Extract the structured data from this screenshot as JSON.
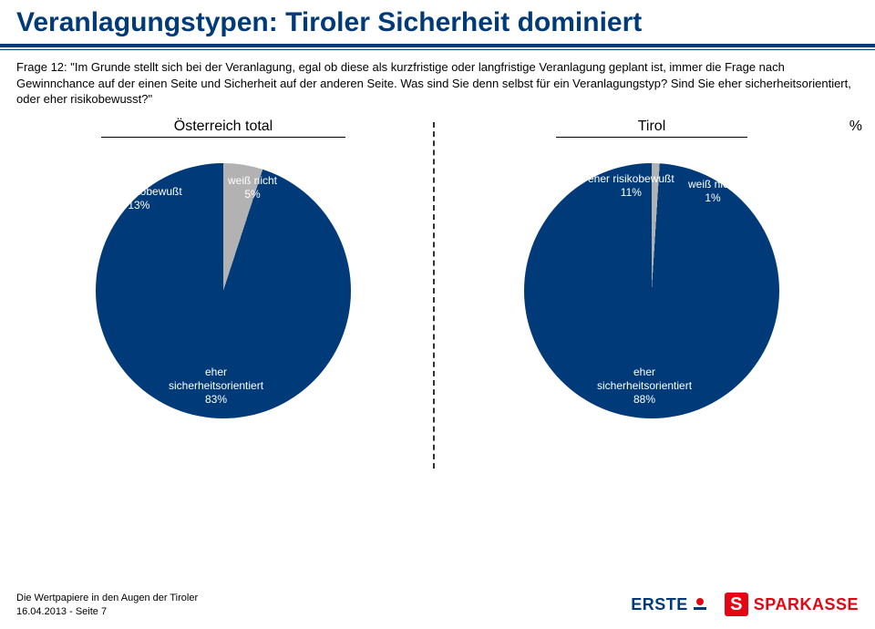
{
  "title": "Veranlagungstypen: Tiroler Sicherheit dominiert",
  "question": "Frage 12: \"Im Grunde stellt sich bei der Veranlagung, egal ob diese als kurzfristige oder langfristige Veranlagung geplant ist, immer die Frage nach Gewinnchance auf der einen Seite und Sicherheit auf der anderen Seite. Was sind Sie denn selbst für ein Veranlagungstyp? Sind Sie eher sicherheitsorientiert, oder eher risikobewusst?\"",
  "unit_label": "%",
  "charts": {
    "left": {
      "header": "Österreich total",
      "type": "pie",
      "colors": {
        "risk": "#e30613",
        "unknown": "#b2b2b2",
        "safe": "#003a78"
      },
      "slices": [
        {
          "key": "risk",
          "label": "eher risikobewußt",
          "value": 13,
          "text": "eher risikobewußt\n13%"
        },
        {
          "key": "unknown",
          "label": "weiß nicht",
          "value": 5,
          "text": "weiß nicht\n5%"
        },
        {
          "key": "safe",
          "label": "eher sicherheitsorientiert",
          "value": 83,
          "text": "eher\nsicherheitsorientiert\n83%"
        }
      ],
      "start_angle_deg": -46.8
    },
    "right": {
      "header": "Tirol",
      "type": "pie",
      "colors": {
        "risk": "#e30613",
        "unknown": "#b2b2b2",
        "safe": "#003a78"
      },
      "slices": [
        {
          "key": "risk",
          "label": "eher risikobewußt",
          "value": 11,
          "text": "eher risikobewußt\n11%"
        },
        {
          "key": "unknown",
          "label": "weiß nicht",
          "value": 1,
          "text": "weiß nicht\n1%"
        },
        {
          "key": "safe",
          "label": "eher sicherheitsorientiert",
          "value": 88,
          "text": "eher\nsicherheitsorientiert\n88%"
        }
      ],
      "start_angle_deg": -39.6
    }
  },
  "footer": {
    "line1": "Die Wertpapiere in den Augen der Tiroler",
    "line2": "16.04.2013 - Seite 7"
  },
  "logos": {
    "erste": "ERSTE",
    "sparkasse": "SPARKASSE",
    "sparkasse_s": "S"
  }
}
